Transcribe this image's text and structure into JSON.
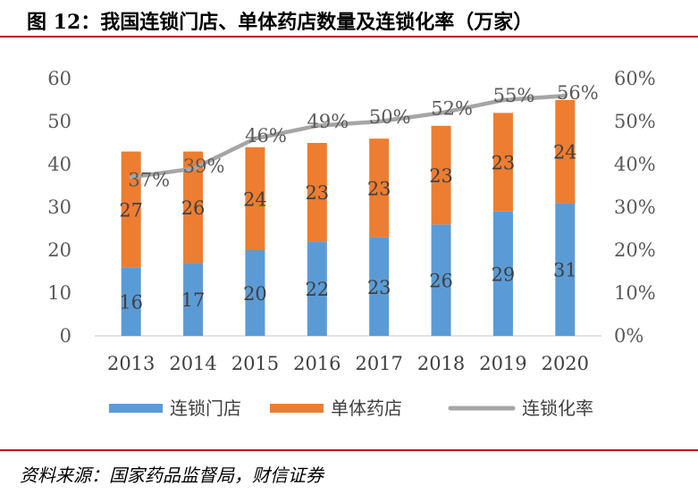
{
  "title": "图 12：我国连锁门店、单体药店数量及连锁化率（万家）",
  "source": "资料来源：国家药品监督局，财信证券",
  "colors": {
    "chain": "#5b9bd5",
    "single": "#ed7d31",
    "rate": "#a5a5a5",
    "axis_text": "#595959",
    "accent": "#c00000"
  },
  "chart_data": {
    "type": "bar",
    "stacked": true,
    "categories": [
      "2013",
      "2014",
      "2015",
      "2016",
      "2017",
      "2018",
      "2019",
      "2020"
    ],
    "series": [
      {
        "name": "连锁门店",
        "type": "bar",
        "axis": "left",
        "values": [
          16,
          17,
          20,
          22,
          23,
          26,
          29,
          31
        ],
        "labels": [
          "16",
          "17",
          "20",
          "22",
          "23",
          "26",
          "29",
          "31"
        ]
      },
      {
        "name": "单体药店",
        "type": "bar",
        "axis": "left",
        "values": [
          27,
          26,
          24,
          23,
          23,
          23,
          23,
          24
        ],
        "labels": [
          "27",
          "26",
          "24",
          "23",
          "23",
          "23",
          "23",
          "24"
        ]
      },
      {
        "name": "连锁化率",
        "type": "line",
        "axis": "right",
        "values": [
          37,
          39,
          46,
          49,
          50,
          52,
          55,
          56
        ],
        "labels": [
          "37%",
          "39%",
          "46%",
          "49%",
          "50%",
          "52%",
          "55%",
          "56%"
        ]
      }
    ],
    "left_axis": {
      "ylim": [
        0,
        60
      ],
      "ticks": [
        "0",
        "10",
        "20",
        "30",
        "40",
        "50",
        "60"
      ]
    },
    "right_axis": {
      "ylim": [
        0,
        60
      ],
      "ticks": [
        "0%",
        "10%",
        "20%",
        "30%",
        "40%",
        "50%",
        "60%"
      ]
    },
    "grid": false,
    "legend_position": "bottom"
  }
}
